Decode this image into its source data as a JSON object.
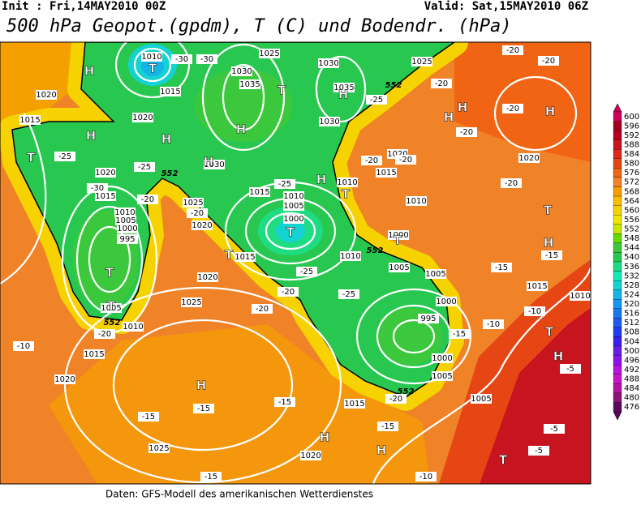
{
  "header": {
    "init": "Init : Fri,14MAY2010 00Z",
    "valid": "Valid: Sat,15MAY2010 06Z",
    "title": "500 hPa Geopot.(gpdm), T (C) und Bodendr. (hPa)"
  },
  "footer": "Daten: GFS-Modell des amerikanischen Wetterdienstes",
  "colorbar": {
    "ticks": [
      600,
      596,
      592,
      588,
      584,
      580,
      576,
      572,
      568,
      564,
      560,
      556,
      552,
      548,
      544,
      540,
      536,
      532,
      528,
      524,
      520,
      516,
      512,
      508,
      504,
      500,
      496,
      492,
      488,
      484,
      480,
      476
    ],
    "colors": [
      "#d2005a",
      "#a0001e",
      "#b4001e",
      "#c8141e",
      "#dc281e",
      "#e64614",
      "#f06414",
      "#f08228",
      "#f5a000",
      "#fabe00",
      "#f5d200",
      "#f0e600",
      "#c8e600",
      "#64dc00",
      "#3cc83c",
      "#28c850",
      "#1edc82",
      "#14e6b4",
      "#14d2d2",
      "#14b4e6",
      "#1496f0",
      "#1478f0",
      "#1e5af0",
      "#1e3cf0",
      "#3c1ef0",
      "#641ee6",
      "#8c14e6",
      "#b414dc",
      "#c814c8",
      "#b414a0",
      "#8c1478",
      "#5a0a5a"
    ]
  },
  "map_labels": {
    "highs_lows": [
      "H",
      "H",
      "H",
      "H",
      "H",
      "H",
      "H",
      "H",
      "H",
      "H",
      "H",
      "H",
      "H",
      "H",
      "H",
      "T",
      "T",
      "T",
      "T",
      "T",
      "T",
      "T",
      "T",
      "T",
      "T",
      "T",
      "T"
    ],
    "isobars": [
      1010,
      1015,
      1020,
      1025,
      1030,
      1035,
      1030,
      1035,
      1030,
      1025,
      1020,
      1015,
      1010,
      1010,
      1000,
      1005,
      1010,
      1005,
      1000,
      995,
      1000,
      1005,
      1005,
      1015,
      1020,
      1025,
      1020,
      1015,
      1010,
      1005,
      1020,
      1025,
      1015,
      1020,
      1025,
      1030,
      1020,
      1015,
      1010,
      1005,
      1000,
      995,
      1015,
      1010,
      1005,
      1000,
      1020,
      1015,
      1020,
      1015,
      1010
    ],
    "temperatures": [
      -30,
      -30,
      -25,
      -25,
      -30,
      -20,
      -20,
      -25,
      -25,
      -20,
      -25,
      -20,
      -20,
      -10,
      -15,
      -15,
      -15,
      -15,
      -20,
      -15,
      -10,
      -10,
      -5,
      -5,
      -5,
      -15,
      -20,
      -20,
      -20,
      -20,
      -20,
      -25,
      -20,
      -20,
      -20,
      -15,
      -15,
      -10
    ],
    "geopotential": [
      552,
      552,
      552,
      552,
      552
    ]
  }
}
